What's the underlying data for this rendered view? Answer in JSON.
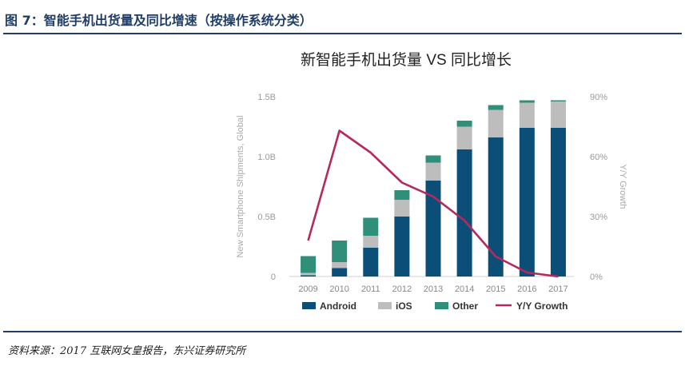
{
  "figure_title": "图 7：智能手机出货量及同比增速（按操作系统分类）",
  "source_note": "资料来源：2017 互联网女皇报告，东兴证券研究所",
  "colors": {
    "android": "#0b4f79",
    "ios": "#bdbdbd",
    "other": "#2f8f79",
    "growth": "#b5295e",
    "header_rule": "#1f3d66"
  },
  "chart_data": {
    "type": "bar",
    "title": "新智能手机出货量 VS 同比增长",
    "ylabel": "New Smartphone Shipments, Global",
    "y2label": "Y/Y Growth",
    "categories": [
      "2009",
      "2010",
      "2011",
      "2012",
      "2013",
      "2014",
      "2015",
      "2016",
      "2017"
    ],
    "ylim": [
      0,
      1.5
    ],
    "y_ticks": [
      {
        "value": 0,
        "label": "0"
      },
      {
        "value": 0.5,
        "label": "0.5B"
      },
      {
        "value": 1.0,
        "label": "1.0B"
      },
      {
        "value": 1.5,
        "label": "1.5B"
      }
    ],
    "y2lim": [
      0,
      90
    ],
    "y2_ticks": [
      {
        "value": 0,
        "label": "0%"
      },
      {
        "value": 30,
        "label": "30%"
      },
      {
        "value": 60,
        "label": "60%"
      },
      {
        "value": 90,
        "label": "90%"
      }
    ],
    "stacked": true,
    "series": [
      {
        "name": "Android",
        "key": "android",
        "values": [
          0.01,
          0.07,
          0.24,
          0.5,
          0.8,
          1.06,
          1.16,
          1.24,
          1.24
        ]
      },
      {
        "name": "iOS",
        "key": "ios",
        "values": [
          0.02,
          0.05,
          0.1,
          0.14,
          0.15,
          0.19,
          0.23,
          0.21,
          0.22
        ]
      },
      {
        "name": "Other",
        "key": "other",
        "values": [
          0.14,
          0.18,
          0.15,
          0.08,
          0.06,
          0.05,
          0.04,
          0.02,
          0.01
        ]
      }
    ],
    "line_series": {
      "name": "Y/Y Growth",
      "key": "growth",
      "axis": "right",
      "values": [
        18,
        73,
        62,
        47,
        40,
        28,
        10,
        2,
        0
      ]
    },
    "legend_position": "bottom",
    "grid": false
  }
}
